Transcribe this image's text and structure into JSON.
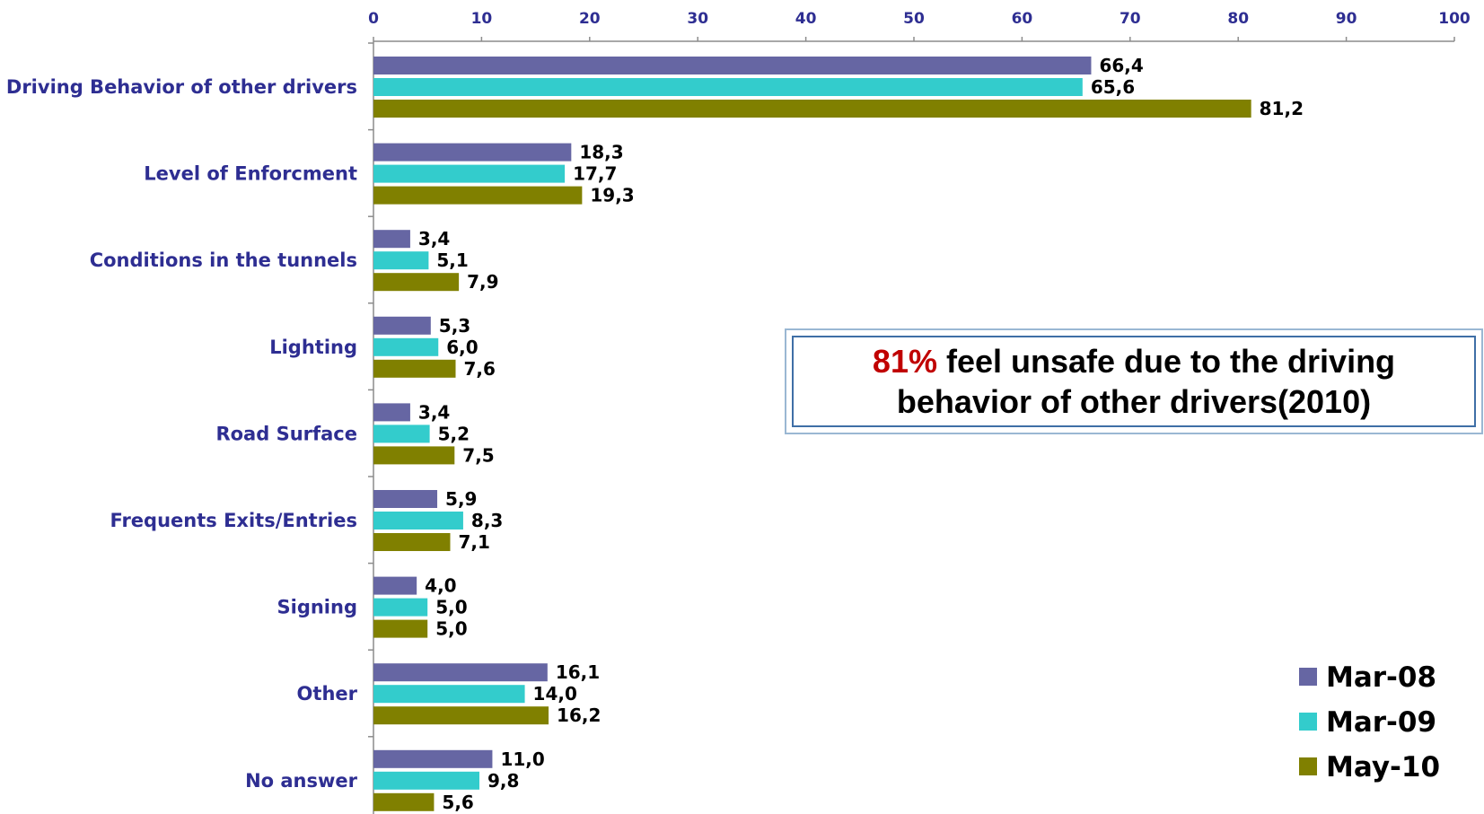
{
  "chart_data": {
    "type": "bar",
    "orientation": "horizontal",
    "categories": [
      "Driving Behavior of other drivers",
      "Level of Enforcment",
      "Conditions in the tunnels",
      "Lighting",
      "Road Surface",
      "Frequents Exits/Entries",
      "Signing",
      "Other",
      "No answer"
    ],
    "series": [
      {
        "name": "Mar-08",
        "color": "#6666a3",
        "values": [
          66.4,
          18.3,
          3.4,
          5.3,
          3.4,
          5.9,
          4.0,
          16.1,
          11.0
        ],
        "labels": [
          "66,4",
          "18,3",
          "3,4",
          "5,3",
          "3,4",
          "5,9",
          "4,0",
          "16,1",
          "11,0"
        ]
      },
      {
        "name": "Mar-09",
        "color": "#33cccc",
        "values": [
          65.6,
          17.7,
          5.1,
          6.0,
          5.2,
          8.3,
          5.0,
          14.0,
          9.8
        ],
        "labels": [
          "65,6",
          "17,7",
          "5,1",
          "6,0",
          "5,2",
          "8,3",
          "5,0",
          "14,0",
          "9,8"
        ]
      },
      {
        "name": "May-10",
        "color": "#808000",
        "values": [
          81.2,
          19.3,
          7.9,
          7.6,
          7.5,
          7.1,
          5.0,
          16.2,
          5.6
        ],
        "labels": [
          "81,2",
          "19,3",
          "7,9",
          "7,6",
          "7,5",
          "7,1",
          "5,0",
          "16,2",
          "5,6"
        ]
      }
    ],
    "xlim": [
      0,
      100
    ],
    "xticks": [
      "0",
      "10",
      "20",
      "30",
      "40",
      "50",
      "60",
      "70",
      "80",
      "90",
      "100"
    ],
    "x_axis_position": "top",
    "grid": false,
    "legend_position": "bottom-right"
  },
  "callout": {
    "highlight": "81%",
    "text": " feel unsafe due to the driving behavior of other drivers(2010)",
    "highlight_color": "#c00000"
  }
}
